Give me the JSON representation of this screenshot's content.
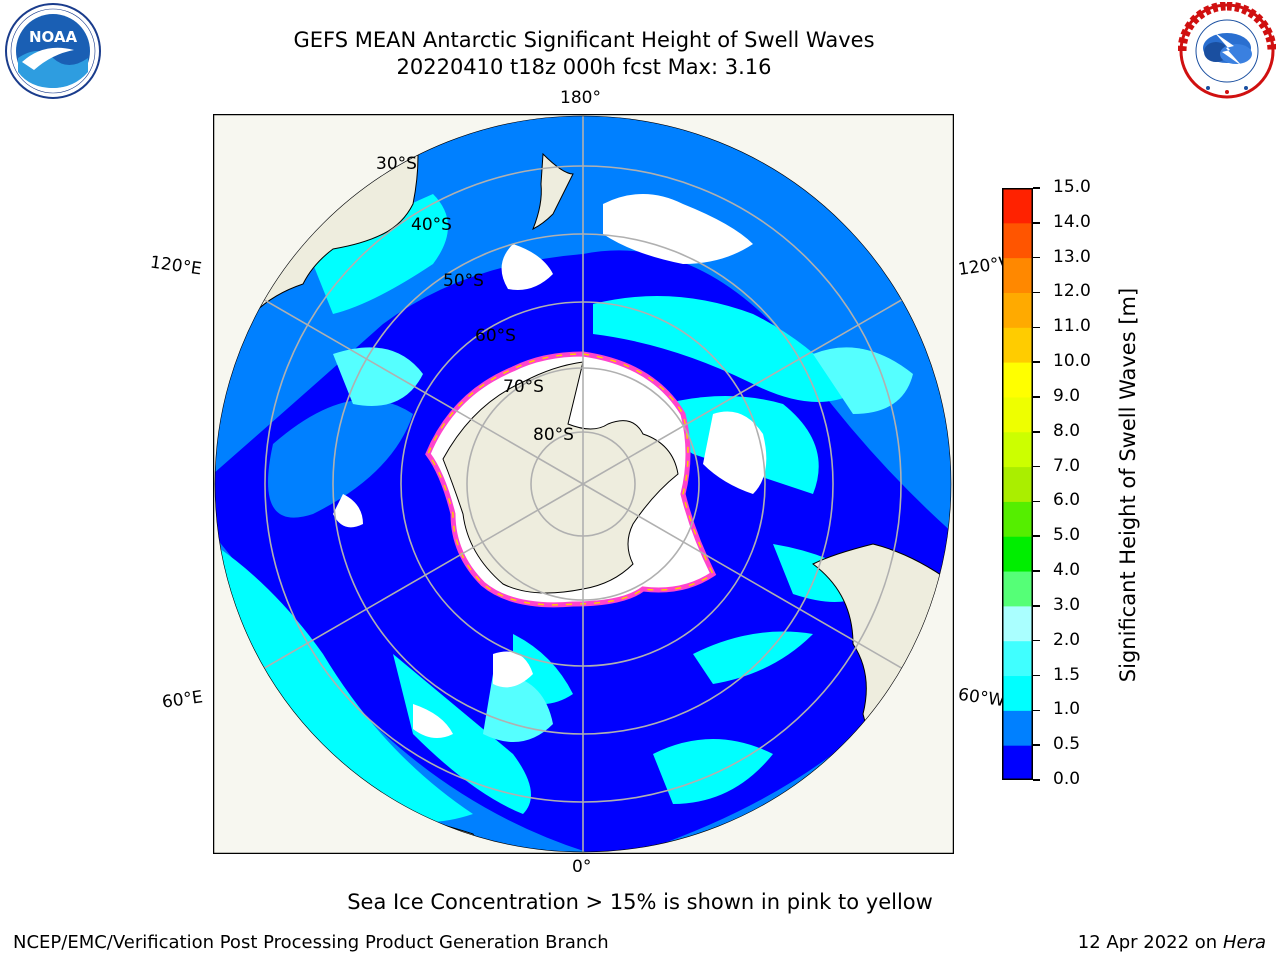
{
  "title_line1": "GEFS MEAN Antarctic Significant Height of Swell Waves",
  "title_line2": "20220410 t18z 000h fcst   Max: 3.16",
  "logos": {
    "left": {
      "name": "noaa-logo",
      "text": "NOAA",
      "ring_text": "NATIONAL OCEANIC AND ATMOSPHERIC ADMINISTRATION · U.S. DEPARTMENT OF COMMERCE"
    },
    "right": {
      "name": "nws-logo",
      "ring_text": "NATIONAL WEATHER SERVICE"
    }
  },
  "map": {
    "projection": "south-polar-stereographic",
    "longitude_labels": {
      "top": "180°",
      "bottom": "0°",
      "upper_left": "120°E",
      "upper_right": "120°W",
      "lower_left": "60°E",
      "lower_right": "60°W"
    },
    "latitude_labels": [
      "30°S",
      "40°S",
      "50°S",
      "60°S",
      "70°S",
      "80°S"
    ],
    "colors": {
      "land": "#eeedde",
      "ocean_low": "#0000ff",
      "ocean_mid": "#0080ff",
      "ocean_high": "#00ffff",
      "swell_light": "#55ffff",
      "ice": "#ffffff",
      "ice_edge": "#ff44cc",
      "grid": "#b0b0b0"
    }
  },
  "colorbar": {
    "label": "Significant Height of Swell Waves [m]",
    "ticks": [
      "0.0",
      "0.5",
      "1.0",
      "1.5",
      "2.0",
      "3.0",
      "4.0",
      "5.0",
      "6.0",
      "7.0",
      "8.0",
      "9.0",
      "10.0",
      "11.0",
      "12.0",
      "13.0",
      "14.0",
      "15.0"
    ],
    "colors": [
      "#0000ff",
      "#0080ff",
      "#00ffff",
      "#40ffff",
      "#aaffff",
      "#55ff77",
      "#00ee00",
      "#55ee00",
      "#aaee00",
      "#ccff00",
      "#eeff00",
      "#ffff00",
      "#ffcc00",
      "#ffaa00",
      "#ff8800",
      "#ff5500",
      "#ff2200"
    ]
  },
  "note": "Sea Ice Concentration > 15% is shown in pink to yellow",
  "footer": {
    "left": "NCEP/EMC/Verification Post Processing Product Generation Branch",
    "right_prefix": "12 Apr 2022 on ",
    "right_host": "Hera"
  }
}
